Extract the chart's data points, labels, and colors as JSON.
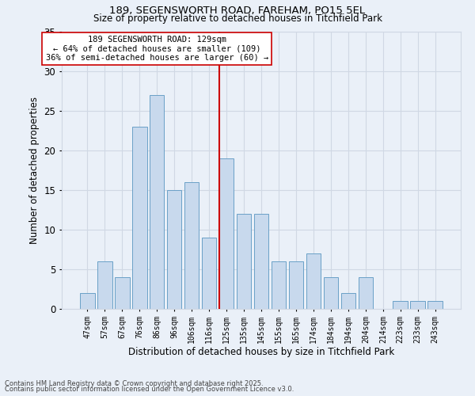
{
  "title1": "189, SEGENSWORTH ROAD, FAREHAM, PO15 5EL",
  "title2": "Size of property relative to detached houses in Titchfield Park",
  "xlabel": "Distribution of detached houses by size in Titchfield Park",
  "ylabel": "Number of detached properties",
  "footnote1": "Contains HM Land Registry data © Crown copyright and database right 2025.",
  "footnote2": "Contains public sector information licensed under the Open Government Licence v3.0.",
  "bar_labels": [
    "47sqm",
    "57sqm",
    "67sqm",
    "76sqm",
    "86sqm",
    "96sqm",
    "106sqm",
    "116sqm",
    "125sqm",
    "135sqm",
    "145sqm",
    "155sqm",
    "165sqm",
    "174sqm",
    "184sqm",
    "194sqm",
    "204sqm",
    "214sqm",
    "223sqm",
    "233sqm",
    "243sqm"
  ],
  "bar_values": [
    2,
    6,
    4,
    23,
    27,
    15,
    16,
    9,
    19,
    12,
    12,
    6,
    6,
    7,
    4,
    2,
    4,
    0,
    1,
    1,
    1
  ],
  "bar_color": "#c8d9ed",
  "bar_edge_color": "#6aa0c7",
  "grid_color": "#d0d8e4",
  "background_color": "#eaf0f8",
  "vline_x": 8.0,
  "vline_color": "#cc0000",
  "annotation_text": "189 SEGENSWORTH ROAD: 129sqm\n← 64% of detached houses are smaller (109)\n36% of semi-detached houses are larger (60) →",
  "annotation_box_facecolor": "#ffffff",
  "annotation_box_edgecolor": "#cc0000",
  "ylim": [
    0,
    35
  ],
  "yticks": [
    0,
    5,
    10,
    15,
    20,
    25,
    30,
    35
  ],
  "fig_width": 6.0,
  "fig_height": 5.0,
  "dpi": 100
}
